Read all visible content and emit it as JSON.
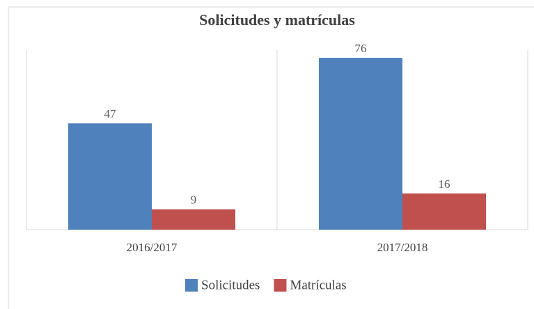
{
  "chart_data": {
    "type": "bar",
    "title": "Solicitudes y matrículas",
    "categories": [
      "2016/2017",
      "2017/2018"
    ],
    "series": [
      {
        "name": "Solicitudes",
        "color": "#4f81bd",
        "values": [
          47,
          76
        ]
      },
      {
        "name": "Matrículas",
        "color": "#c0504d",
        "values": [
          9,
          16
        ]
      }
    ],
    "ylim": [
      0,
      80
    ],
    "legend": "bottom"
  }
}
